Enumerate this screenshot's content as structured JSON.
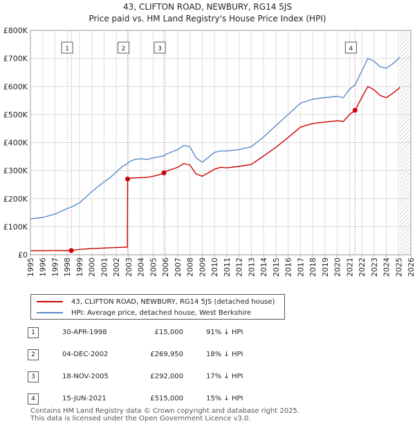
{
  "title_line1": "43, CLIFTON ROAD, NEWBURY, RG14 5JS",
  "title_line2": "Price paid vs. HM Land Registry's House Price Index (HPI)",
  "colors": {
    "price_paid": "#cc0000",
    "hpi": "#5a8ac6",
    "grid": "#dddddd",
    "future_hatch": "#bbbbbb",
    "marker_line": "#e07090"
  },
  "legend": {
    "price_paid": "43, CLIFTON ROAD, NEWBURY, RG14 5JS (detached house)",
    "hpi": "HPI: Average price, detached house, West Berkshire"
  },
  "transactions": [
    {
      "num": "1",
      "date": "30-APR-1998",
      "price": "£15,000",
      "hpi": "91% ↓ HPI"
    },
    {
      "num": "2",
      "date": "04-DEC-2002",
      "price": "£269,950",
      "hpi": "18% ↓ HPI"
    },
    {
      "num": "3",
      "date": "18-NOV-2005",
      "price": "£292,000",
      "hpi": "17% ↓ HPI"
    },
    {
      "num": "4",
      "date": "15-JUN-2021",
      "price": "£515,000",
      "hpi": "15% ↓ HPI"
    }
  ],
  "footer_line1": "Contains HM Land Registry data © Crown copyright and database right 2025.",
  "footer_line2": "This data is licensed under the Open Government Licence v3.0.",
  "chart_data": {
    "type": "line",
    "xlim": [
      1995,
      2026
    ],
    "ylim": [
      0,
      800000
    ],
    "x_ticks": [
      1995,
      1996,
      1997,
      1998,
      1999,
      2000,
      2001,
      2002,
      2003,
      2004,
      2005,
      2006,
      2007,
      2008,
      2009,
      2010,
      2011,
      2012,
      2013,
      2014,
      2015,
      2016,
      2017,
      2018,
      2019,
      2020,
      2021,
      2022,
      2023,
      2024,
      2025,
      2026
    ],
    "y_ticks": [
      {
        "value": 0,
        "label": "£0"
      },
      {
        "value": 100000,
        "label": "£100K"
      },
      {
        "value": 200000,
        "label": "£200K"
      },
      {
        "value": 300000,
        "label": "£300K"
      },
      {
        "value": 400000,
        "label": "£400K"
      },
      {
        "value": 500000,
        "label": "£500K"
      },
      {
        "value": 600000,
        "label": "£600K"
      },
      {
        "value": 700000,
        "label": "£700K"
      },
      {
        "value": 800000,
        "label": "£800K"
      }
    ],
    "future_from": 2025.1,
    "sales": [
      {
        "label": "1",
        "x": 1998.33,
        "y": 15000
      },
      {
        "label": "2",
        "x": 2002.92,
        "y": 269950
      },
      {
        "label": "3",
        "x": 2005.88,
        "y": 292000
      },
      {
        "label": "4",
        "x": 2021.45,
        "y": 515000
      }
    ],
    "series": [
      {
        "name": "HPI: Average price, detached house, West Berkshire",
        "x": [
          1995,
          1996,
          1997,
          1998,
          1998.33,
          1999,
          2000,
          2001,
          2001.5,
          2002,
          2002.5,
          2002.92,
          2003,
          2003.5,
          2004,
          2004.5,
          2005,
          2005.5,
          2005.88,
          2006,
          2007,
          2007.5,
          2008,
          2008.5,
          2009,
          2009.3,
          2010,
          2010.5,
          2011,
          2012,
          2013,
          2014,
          2015,
          2016,
          2017,
          2018,
          2019,
          2020,
          2020.5,
          2021,
          2021.45,
          2022,
          2022.5,
          2023,
          2023.5,
          2024,
          2024.5,
          2025,
          2025.1
        ],
        "y": [
          128000,
          133000,
          145000,
          165000,
          170000,
          185000,
          225000,
          260000,
          275000,
          295000,
          315000,
          325000,
          330000,
          340000,
          342000,
          340000,
          345000,
          350000,
          352000,
          358000,
          375000,
          390000,
          385000,
          345000,
          330000,
          340000,
          365000,
          370000,
          370000,
          375000,
          385000,
          420000,
          460000,
          500000,
          540000,
          555000,
          560000,
          565000,
          560000,
          590000,
          605000,
          655000,
          700000,
          690000,
          670000,
          665000,
          680000,
          700000,
          705000
        ]
      },
      {
        "name": "43, CLIFTON ROAD, NEWBURY, RG14 5JS (detached house)",
        "x": [
          1995,
          1996,
          1997,
          1998,
          1998.33,
          1999,
          2000,
          2001,
          2002,
          2002.9,
          2002.92,
          2003,
          2003.5,
          2004,
          2004.5,
          2005,
          2005.5,
          2005.88,
          2006,
          2007,
          2007.5,
          2008,
          2008.5,
          2009,
          2009.3,
          2010,
          2010.5,
          2011,
          2012,
          2013,
          2014,
          2015,
          2016,
          2017,
          2018,
          2019,
          2020,
          2020.5,
          2021,
          2021.45,
          2022,
          2022.5,
          2023,
          2023.5,
          2024,
          2024.5,
          2025,
          2025.1
        ],
        "y": [
          14000,
          14200,
          14500,
          14800,
          15000,
          19000,
          22000,
          24000,
          25500,
          27000,
          269950,
          272000,
          274000,
          275000,
          276000,
          280000,
          285000,
          292000,
          297000,
          312000,
          325000,
          320000,
          288000,
          280000,
          287000,
          305000,
          312000,
          310000,
          315000,
          322000,
          352000,
          383000,
          418000,
          455000,
          468000,
          473000,
          478000,
          475000,
          500000,
          515000,
          560000,
          600000,
          588000,
          568000,
          560000,
          575000,
          592000,
          598000
        ]
      }
    ]
  }
}
